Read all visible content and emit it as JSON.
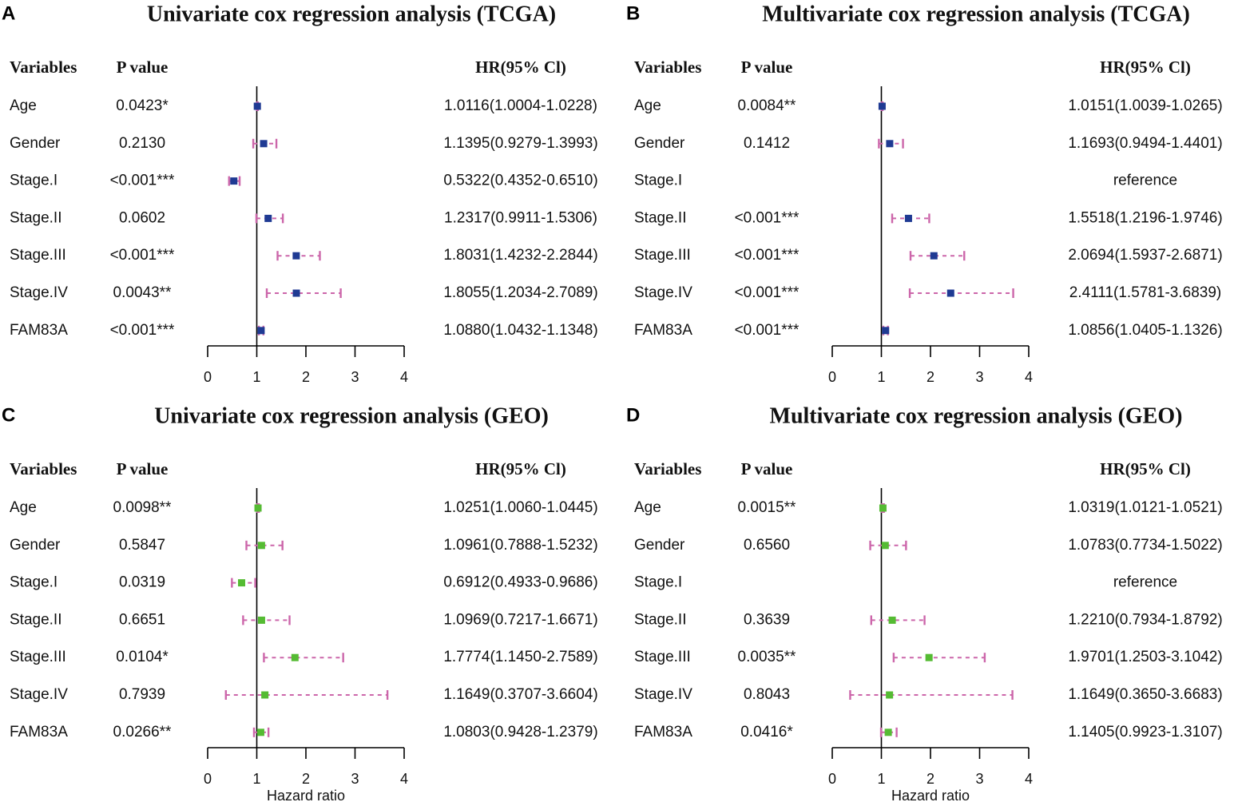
{
  "chart_data": [
    {
      "type": "forest",
      "panel_label": "A",
      "title": "Univariate cox regression analysis (TCGA)",
      "headers": {
        "variables": "Variables",
        "p_value": "P value",
        "hr": "HR(95% Cl)"
      },
      "xlabel": "",
      "xlim": [
        0,
        4
      ],
      "xticks": [
        0,
        1,
        2,
        3,
        4
      ],
      "reference_line": 1,
      "marker_color": "#1f3a93",
      "ci_color": "#cc66aa",
      "rows": [
        {
          "variable": "Age",
          "p_value": "0.0423*",
          "hr_text": "1.0116(1.0004-1.0228)",
          "hr": 1.0116,
          "lo": 1.0004,
          "hi": 1.0228
        },
        {
          "variable": "Gender",
          "p_value": "0.2130",
          "hr_text": "1.1395(0.9279-1.3993)",
          "hr": 1.1395,
          "lo": 0.9279,
          "hi": 1.3993
        },
        {
          "variable": "Stage.I",
          "p_value": "<0.001***",
          "hr_text": "0.5322(0.4352-0.6510)",
          "hr": 0.5322,
          "lo": 0.4352,
          "hi": 0.651
        },
        {
          "variable": "Stage.II",
          "p_value": "0.0602",
          "hr_text": "1.2317(0.9911-1.5306)",
          "hr": 1.2317,
          "lo": 0.9911,
          "hi": 1.5306
        },
        {
          "variable": "Stage.III",
          "p_value": "<0.001***",
          "hr_text": "1.8031(1.4232-2.2844)",
          "hr": 1.8031,
          "lo": 1.4232,
          "hi": 2.2844
        },
        {
          "variable": "Stage.IV",
          "p_value": "0.0043**",
          "hr_text": "1.8055(1.2034-2.7089)",
          "hr": 1.8055,
          "lo": 1.2034,
          "hi": 2.7089
        },
        {
          "variable": "FAM83A",
          "p_value": "<0.001***",
          "hr_text": "1.0880(1.0432-1.1348)",
          "hr": 1.088,
          "lo": 1.0432,
          "hi": 1.1348
        }
      ]
    },
    {
      "type": "forest",
      "panel_label": "B",
      "title": "Multivariate cox regression analysis (TCGA)",
      "headers": {
        "variables": "Variables",
        "p_value": "P value",
        "hr": "HR(95% Cl)"
      },
      "xlabel": "",
      "xlim": [
        0,
        4
      ],
      "xticks": [
        0,
        1,
        2,
        3,
        4
      ],
      "reference_line": 1,
      "marker_color": "#1f3a93",
      "ci_color": "#cc66aa",
      "rows": [
        {
          "variable": "Age",
          "p_value": "0.0084**",
          "hr_text": "1.0151(1.0039-1.0265)",
          "hr": 1.0151,
          "lo": 1.0039,
          "hi": 1.0265
        },
        {
          "variable": "Gender",
          "p_value": "0.1412",
          "hr_text": "1.1693(0.9494-1.4401)",
          "hr": 1.1693,
          "lo": 0.9494,
          "hi": 1.4401
        },
        {
          "variable": "Stage.I",
          "p_value": "",
          "hr_text": "reference",
          "hr": null,
          "lo": null,
          "hi": null
        },
        {
          "variable": "Stage.II",
          "p_value": "<0.001***",
          "hr_text": "1.5518(1.2196-1.9746)",
          "hr": 1.5518,
          "lo": 1.2196,
          "hi": 1.9746
        },
        {
          "variable": "Stage.III",
          "p_value": "<0.001***",
          "hr_text": "2.0694(1.5937-2.6871)",
          "hr": 2.0694,
          "lo": 1.5937,
          "hi": 2.6871
        },
        {
          "variable": "Stage.IV",
          "p_value": "<0.001***",
          "hr_text": "2.4111(1.5781-3.6839)",
          "hr": 2.4111,
          "lo": 1.5781,
          "hi": 3.6839
        },
        {
          "variable": "FAM83A",
          "p_value": "<0.001***",
          "hr_text": "1.0856(1.0405-1.1326)",
          "hr": 1.0856,
          "lo": 1.0405,
          "hi": 1.1326
        }
      ]
    },
    {
      "type": "forest",
      "panel_label": "C",
      "title": "Univariate cox regression analysis (GEO)",
      "headers": {
        "variables": "Variables",
        "p_value": "P value",
        "hr": "HR(95% Cl)"
      },
      "xlabel": "Hazard ratio",
      "xlim": [
        0,
        4
      ],
      "xticks": [
        0,
        1,
        2,
        3,
        4
      ],
      "reference_line": 1,
      "marker_color": "#55bb33",
      "ci_color": "#cc66aa",
      "rows": [
        {
          "variable": "Age",
          "p_value": "0.0098**",
          "hr_text": "1.0251(1.0060-1.0445)",
          "hr": 1.0251,
          "lo": 1.006,
          "hi": 1.0445
        },
        {
          "variable": "Gender",
          "p_value": "0.5847",
          "hr_text": "1.0961(0.7888-1.5232)",
          "hr": 1.0961,
          "lo": 0.7888,
          "hi": 1.5232
        },
        {
          "variable": "Stage.I",
          "p_value": "0.0319",
          "hr_text": "0.6912(0.4933-0.9686)",
          "hr": 0.6912,
          "lo": 0.4933,
          "hi": 0.9686
        },
        {
          "variable": "Stage.II",
          "p_value": "0.6651",
          "hr_text": "1.0969(0.7217-1.6671)",
          "hr": 1.0969,
          "lo": 0.7217,
          "hi": 1.6671
        },
        {
          "variable": "Stage.III",
          "p_value": "0.0104*",
          "hr_text": "1.7774(1.1450-2.7589)",
          "hr": 1.7774,
          "lo": 1.145,
          "hi": 2.7589
        },
        {
          "variable": "Stage.IV",
          "p_value": "0.7939",
          "hr_text": "1.1649(0.3707-3.6604)",
          "hr": 1.1649,
          "lo": 0.3707,
          "hi": 3.6604
        },
        {
          "variable": "FAM83A",
          "p_value": "0.0266**",
          "hr_text": "1.0803(0.9428-1.2379)",
          "hr": 1.0803,
          "lo": 0.9428,
          "hi": 1.2379
        }
      ]
    },
    {
      "type": "forest",
      "panel_label": "D",
      "title": "Multivariate cox regression analysis (GEO)",
      "headers": {
        "variables": "Variables",
        "p_value": "P value",
        "hr": "HR(95% Cl)"
      },
      "xlabel": "Hazard ratio",
      "xlim": [
        0,
        4
      ],
      "xticks": [
        0,
        1,
        2,
        3,
        4
      ],
      "reference_line": 1,
      "marker_color": "#55bb33",
      "ci_color": "#cc66aa",
      "rows": [
        {
          "variable": "Age",
          "p_value": "0.0015**",
          "hr_text": "1.0319(1.0121-1.0521)",
          "hr": 1.0319,
          "lo": 1.0121,
          "hi": 1.0521
        },
        {
          "variable": "Gender",
          "p_value": "0.6560",
          "hr_text": "1.0783(0.7734-1.5022)",
          "hr": 1.0783,
          "lo": 0.7734,
          "hi": 1.5022
        },
        {
          "variable": "Stage.I",
          "p_value": "",
          "hr_text": "reference",
          "hr": null,
          "lo": null,
          "hi": null
        },
        {
          "variable": "Stage.II",
          "p_value": "0.3639",
          "hr_text": "1.2210(0.7934-1.8792)",
          "hr": 1.221,
          "lo": 0.7934,
          "hi": 1.8792
        },
        {
          "variable": "Stage.III",
          "p_value": "0.0035**",
          "hr_text": "1.9701(1.2503-3.1042)",
          "hr": 1.9701,
          "lo": 1.2503,
          "hi": 3.1042
        },
        {
          "variable": "Stage.IV",
          "p_value": "0.8043",
          "hr_text": "1.1649(0.3650-3.6683)",
          "hr": 1.1649,
          "lo": 0.365,
          "hi": 3.6683
        },
        {
          "variable": "FAM83A",
          "p_value": "0.0416*",
          "hr_text": "1.1405(0.9923-1.3107)",
          "hr": 1.1405,
          "lo": 0.9923,
          "hi": 1.3107
        }
      ]
    }
  ]
}
